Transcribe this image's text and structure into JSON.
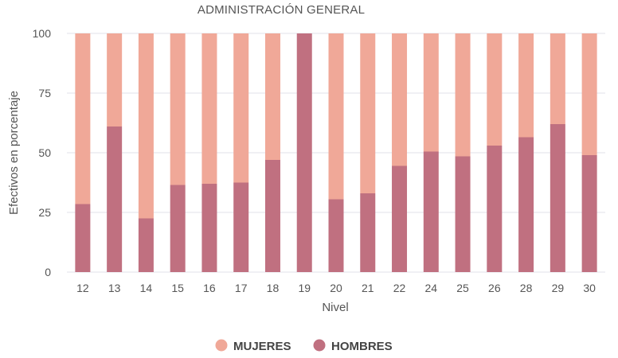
{
  "chart_data": {
    "type": "bar",
    "stacked": true,
    "title": "ADMINISTRACIÓN GENERAL",
    "xlabel": "Nivel",
    "ylabel": "Efectivos en porcentaje",
    "ylim": [
      0,
      100
    ],
    "yticks": [
      0,
      25,
      50,
      75,
      100
    ],
    "grid": true,
    "legend_position": "bottom",
    "categories": [
      "12",
      "13",
      "14",
      "15",
      "16",
      "17",
      "18",
      "19",
      "20",
      "21",
      "22",
      "24",
      "25",
      "26",
      "28",
      "29",
      "30"
    ],
    "series": [
      {
        "name": "HOMBRES",
        "color": "#c07080",
        "values": [
          28.5,
          61,
          22.5,
          36.5,
          37,
          37.5,
          47,
          100,
          30.5,
          33,
          44.5,
          50.5,
          48.5,
          53,
          56.5,
          62,
          49
        ]
      },
      {
        "name": "MUJERES",
        "color": "#f0a898",
        "values": [
          71.5,
          39,
          77.5,
          63.5,
          63,
          62.5,
          53,
          0,
          69.5,
          67,
          55.5,
          49.5,
          51.5,
          47,
          43.5,
          38,
          51
        ]
      }
    ],
    "legend_order": [
      "MUJERES",
      "HOMBRES"
    ]
  }
}
